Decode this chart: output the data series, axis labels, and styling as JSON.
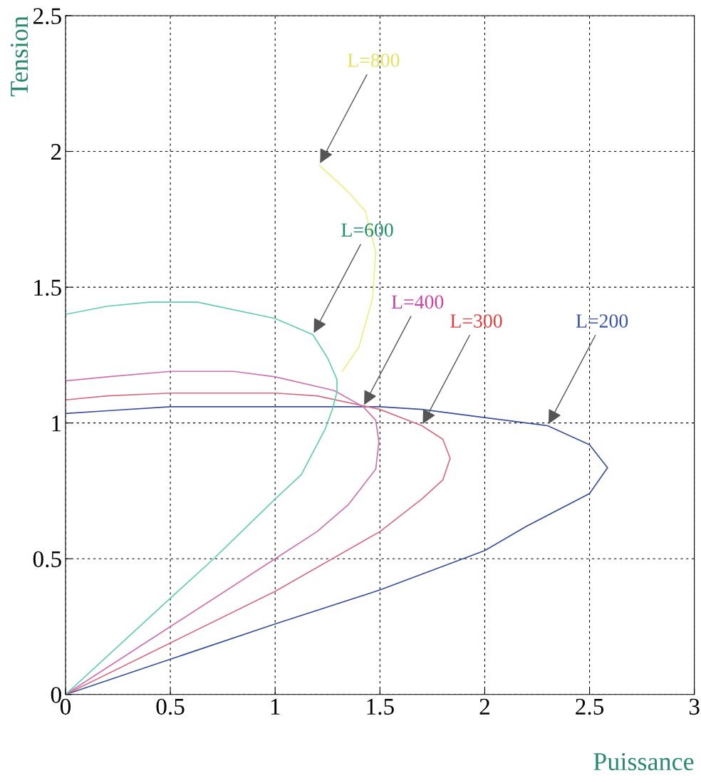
{
  "chart_data": {
    "type": "line",
    "xlabel": "Puissance",
    "ylabel": "Tension",
    "xlim": [
      0,
      3
    ],
    "ylim": [
      0,
      2.5
    ],
    "xticks": [
      0,
      0.5,
      1,
      1.5,
      2,
      2.5,
      3
    ],
    "yticks": [
      0,
      0.5,
      1,
      1.5,
      2,
      2.5
    ],
    "grid": true,
    "line_style": "solid",
    "marker": "none",
    "series": [
      {
        "color": "#3a4f9a",
        "x": [
          0,
          0.2,
          0.5,
          1.0,
          1.5,
          1.7,
          2.0,
          2.3,
          2.5,
          2.586,
          2.5,
          2.2,
          2.0,
          1.5,
          1.0,
          0.5,
          0
        ],
        "values": [
          1.035,
          1.045,
          1.06,
          1.06,
          1.06,
          1.05,
          1.02,
          0.99,
          0.92,
          0.835,
          0.74,
          0.62,
          0.53,
          0.385,
          0.26,
          0.13,
          0
        ]
      },
      {
        "color": "#d86a80",
        "x": [
          0,
          0.2,
          0.5,
          1.0,
          1.2,
          1.5,
          1.7,
          1.8,
          1.835,
          1.8,
          1.7,
          1.5,
          1.0,
          0.5,
          0
        ],
        "values": [
          1.085,
          1.1,
          1.11,
          1.11,
          1.1,
          1.05,
          0.99,
          0.94,
          0.87,
          0.79,
          0.72,
          0.6,
          0.38,
          0.19,
          0
        ]
      },
      {
        "color": "#d070b0",
        "x": [
          0,
          0.2,
          0.5,
          0.8,
          1.0,
          1.28,
          1.42,
          1.48,
          1.495,
          1.48,
          1.35,
          1.2,
          1.0,
          0.5,
          0
        ],
        "values": [
          1.155,
          1.17,
          1.19,
          1.19,
          1.17,
          1.12,
          1.06,
          1.01,
          0.93,
          0.83,
          0.7,
          0.6,
          0.5,
          0.25,
          0
        ]
      },
      {
        "color": "#60ccb0",
        "x": [
          0,
          0.2,
          0.4,
          0.63,
          1.0,
          1.18,
          1.25,
          1.295,
          1.295,
          1.275,
          1.24,
          1.125,
          1.0,
          0.707,
          0.5,
          0
        ],
        "values": [
          1.4,
          1.43,
          1.445,
          1.445,
          1.385,
          1.325,
          1.24,
          1.16,
          1.115,
          1.055,
          0.98,
          0.81,
          0.72,
          0.5,
          0.355,
          0
        ]
      },
      {
        "color": "#eeee80",
        "x": [
          1.21,
          1.35,
          1.43,
          1.48,
          1.465,
          1.4,
          1.32
        ],
        "values": [
          1.95,
          1.85,
          1.78,
          1.63,
          1.46,
          1.28,
          1.19
        ]
      }
    ],
    "annotations": [
      {
        "text": "L=200",
        "x": 2.3,
        "y": 0.99
      },
      {
        "text": "L=300",
        "x": 1.7,
        "y": 0.99
      },
      {
        "text": "L=400",
        "x": 1.42,
        "y": 1.06
      },
      {
        "text": "L=600",
        "x": 1.18,
        "y": 1.325
      },
      {
        "text": "L=800",
        "x": 1.21,
        "y": 1.95
      }
    ]
  }
}
